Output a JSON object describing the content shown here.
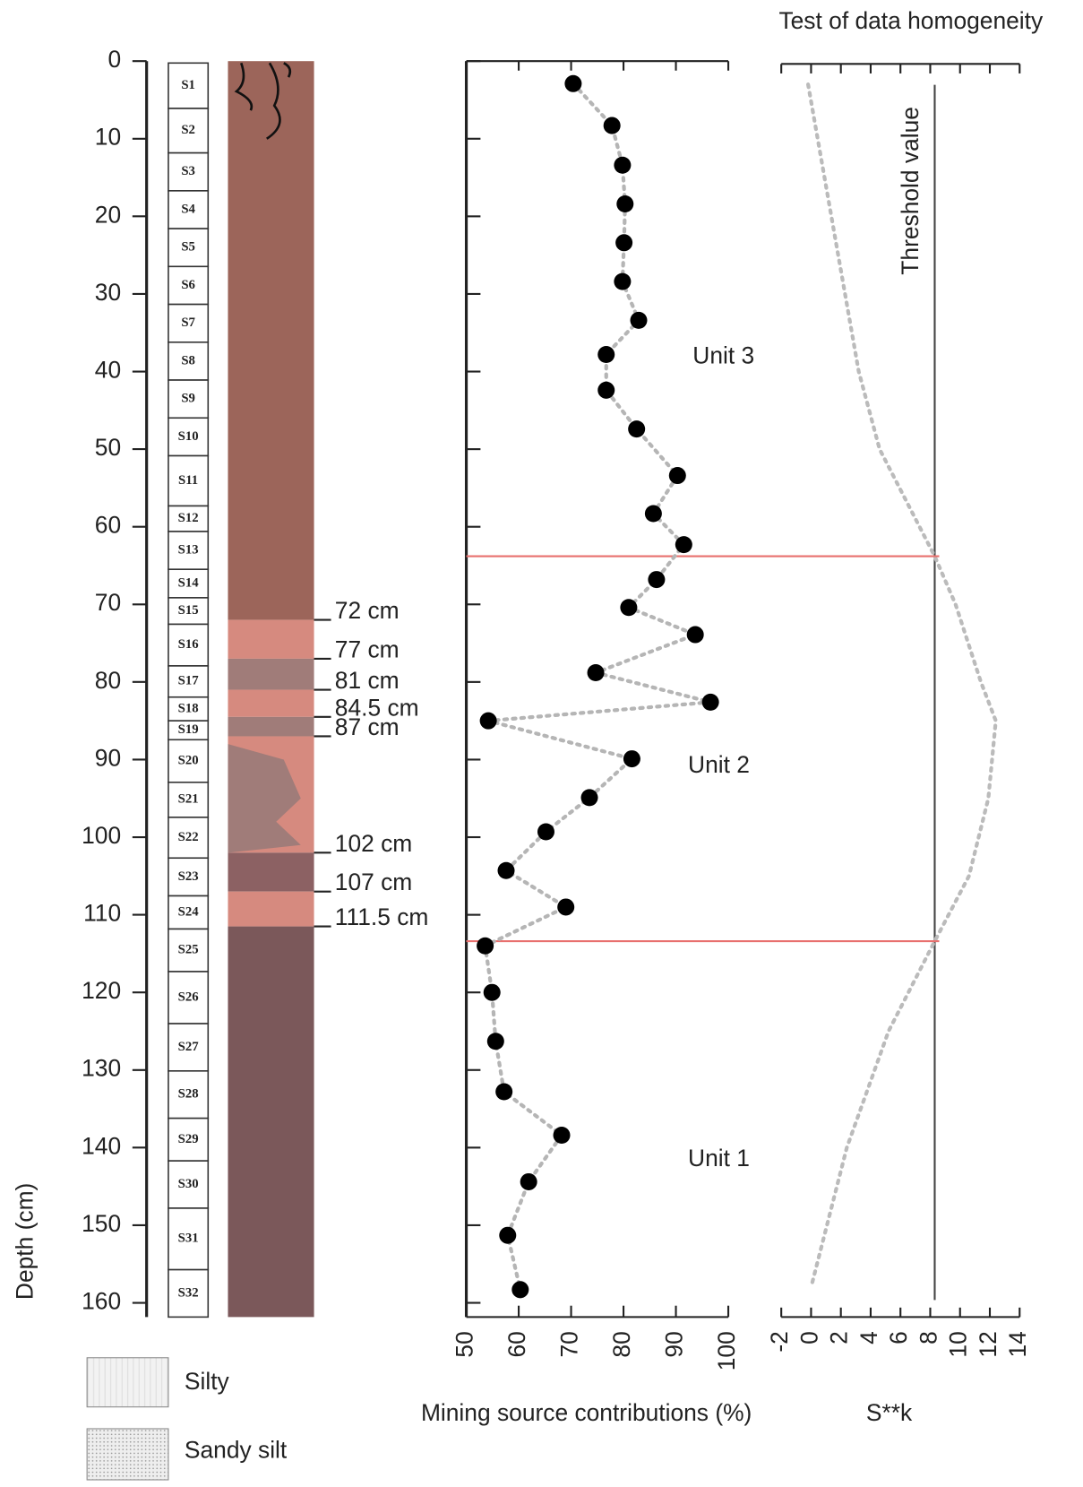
{
  "chart_data": [
    {
      "type": "scatter",
      "xlabel": "Mining source contributions (%)",
      "ylabel": "Depth (cm)",
      "xlim": [
        50,
        100
      ],
      "xticks": [
        50,
        60,
        70,
        80,
        90,
        100
      ],
      "ylim": [
        0,
        160
      ],
      "yticks": [
        0,
        10,
        20,
        30,
        40,
        50,
        60,
        70,
        80,
        90,
        100,
        110,
        120,
        130,
        140,
        150,
        160
      ],
      "x": [
        70.4,
        77.8,
        79.8,
        80.3,
        80.1,
        79.8,
        82.9,
        76.7,
        76.7,
        82.5,
        90.3,
        85.7,
        91.5,
        86.3,
        81.0,
        93.7,
        74.7,
        96.6,
        54.2,
        81.6,
        73.5,
        65.2,
        57.6,
        69.0,
        53.6,
        54.9,
        55.6,
        57.2,
        68.2,
        61.9,
        57.9,
        60.3
      ],
      "y": [
        2.9,
        8.3,
        13.4,
        18.4,
        23.4,
        28.4,
        33.4,
        37.8,
        42.4,
        47.4,
        53.4,
        58.3,
        62.3,
        66.8,
        70.4,
        73.9,
        78.8,
        82.6,
        85.0,
        89.9,
        94.9,
        99.3,
        104.3,
        109.0,
        114.0,
        120.0,
        126.3,
        132.8,
        138.4,
        144.4,
        151.3,
        158.3
      ],
      "color": "#000000",
      "connector_color": "#b5b5b5",
      "unit_boundaries": [
        63.8,
        113.4
      ],
      "boundary_color": "#e8706e",
      "annotations": [
        "Unit 3",
        "Unit 2",
        "Unit 1"
      ],
      "annotation_color": "#e8706e"
    },
    {
      "type": "line",
      "title": "Test of data homogeneity",
      "xlabel": "S**k",
      "xlim": [
        -2,
        14
      ],
      "xticks": [
        -2,
        0,
        2,
        4,
        6,
        8,
        10,
        12,
        14
      ],
      "x": [
        -0.2,
        3.2,
        4.6,
        8.3,
        9.7,
        11.4,
        12.4,
        11.9,
        10.6,
        8.3,
        5.2,
        2.4,
        0.0
      ],
      "y": [
        3,
        40,
        50,
        63.8,
        70,
        80,
        85,
        95,
        105,
        113.4,
        125,
        140,
        158
      ],
      "color": "#bbbbbb",
      "threshold": {
        "value": 8.3,
        "label": "Threshold value"
      }
    }
  ],
  "core": {
    "samples": [
      "S1",
      "S2",
      "S3",
      "S4",
      "S5",
      "S6",
      "S7",
      "S8",
      "S9",
      "S10",
      "S11",
      "S12",
      "S13",
      "S14",
      "S15",
      "S16",
      "S17",
      "S18",
      "S19",
      "S20",
      "S21",
      "S22",
      "S23",
      "S24",
      "S25",
      "S26",
      "S27",
      "S28",
      "S29",
      "S30",
      "S31",
      "S32"
    ],
    "layer_depths": [
      {
        "value": 72,
        "label": "72 cm"
      },
      {
        "value": 77,
        "label": "77 cm"
      },
      {
        "value": 81,
        "label": "81 cm"
      },
      {
        "value": 84.5,
        "label": "84.5 cm"
      },
      {
        "value": 87,
        "label": "87 cm"
      },
      {
        "value": 102,
        "label": "102 cm"
      },
      {
        "value": 107,
        "label": "107 cm"
      },
      {
        "value": 111.5,
        "label": "111.5 cm"
      }
    ],
    "layer_colors": [
      "#9c655a",
      "#d68a7f",
      "#a07c79",
      "#d68a7f",
      "#a07c79",
      "#d68a7f",
      "#8c6163",
      "#d68a7f",
      "#7b585a"
    ],
    "legend": [
      "Silty",
      "Sandy silt"
    ]
  }
}
